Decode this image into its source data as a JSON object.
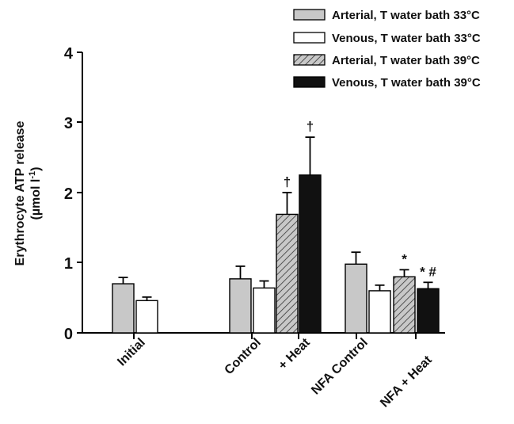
{
  "chart_data": {
    "type": "bar",
    "xlabel": "",
    "ylabel_line1": "Erythrocyte ATP release",
    "ylabel_line2_prefix": "(µmol l",
    "ylabel_line2_sup": "-1",
    "ylabel_line2_suffix": ")",
    "ylim": [
      0,
      4
    ],
    "yticks": [
      "0",
      "1",
      "2",
      "3",
      "4"
    ],
    "grid": false,
    "legend_position": "top-right",
    "categories": [
      "Initial",
      "Control",
      "+ Heat",
      "NFA Control",
      "NFA + Heat"
    ],
    "series": [
      {
        "name": "Arterial, T water bath 33°C",
        "fill": "#c8c8c8",
        "pattern": "none"
      },
      {
        "name": "Venous, T water bath 33°C",
        "fill": "#ffffff",
        "pattern": "none"
      },
      {
        "name": "Arterial, T water bath 39°C",
        "fill": "#c8c8c8",
        "pattern": "hatch"
      },
      {
        "name": "Venous, T water bath 39°C",
        "fill": "#111111",
        "pattern": "none"
      }
    ],
    "bars": [
      {
        "group": "Initial",
        "series": 0,
        "value": 0.7,
        "err": 0.09,
        "annotation": ""
      },
      {
        "group": "Initial",
        "series": 1,
        "value": 0.46,
        "err": 0.05,
        "annotation": ""
      },
      {
        "group": "Control",
        "series": 0,
        "value": 0.77,
        "err": 0.18,
        "annotation": ""
      },
      {
        "group": "Control",
        "series": 1,
        "value": 0.64,
        "err": 0.1,
        "annotation": ""
      },
      {
        "group": "+ Heat",
        "series": 2,
        "value": 1.69,
        "err": 0.31,
        "annotation": "†"
      },
      {
        "group": "+ Heat",
        "series": 3,
        "value": 2.25,
        "err": 0.54,
        "annotation": "†"
      },
      {
        "group": "NFA Control",
        "series": 0,
        "value": 0.98,
        "err": 0.17,
        "annotation": ""
      },
      {
        "group": "NFA Control",
        "series": 1,
        "value": 0.6,
        "err": 0.08,
        "annotation": ""
      },
      {
        "group": "NFA + Heat",
        "series": 2,
        "value": 0.8,
        "err": 0.1,
        "annotation": "*"
      },
      {
        "group": "NFA + Heat",
        "series": 3,
        "value": 0.63,
        "err": 0.09,
        "annotation": "* #"
      }
    ]
  }
}
